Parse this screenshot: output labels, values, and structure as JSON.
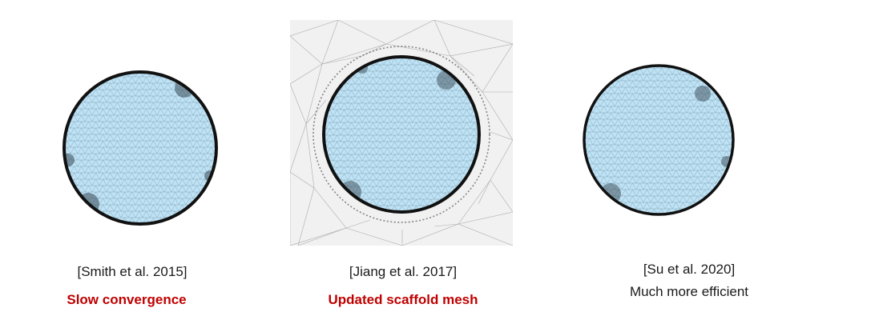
{
  "panels": [
    {
      "citation": "[Smith et al. 2015]",
      "note": "Slow convergence",
      "note_style": "emphasis"
    },
    {
      "citation": "[Jiang et al. 2017]",
      "note": "Updated scaffold mesh",
      "note_style": "emphasis"
    },
    {
      "citation": "[Su et al. 2020]",
      "note": "Much more efficient",
      "note_style": "plain"
    }
  ],
  "colors": {
    "disk_fill": "#bfe3f5",
    "mesh_line": "#6a8fa3",
    "boundary": "#111111",
    "scaffold_bg": "#f1f1f1",
    "scaffold_line": "#9a9a9a",
    "emphasis_text": "#c00000"
  }
}
